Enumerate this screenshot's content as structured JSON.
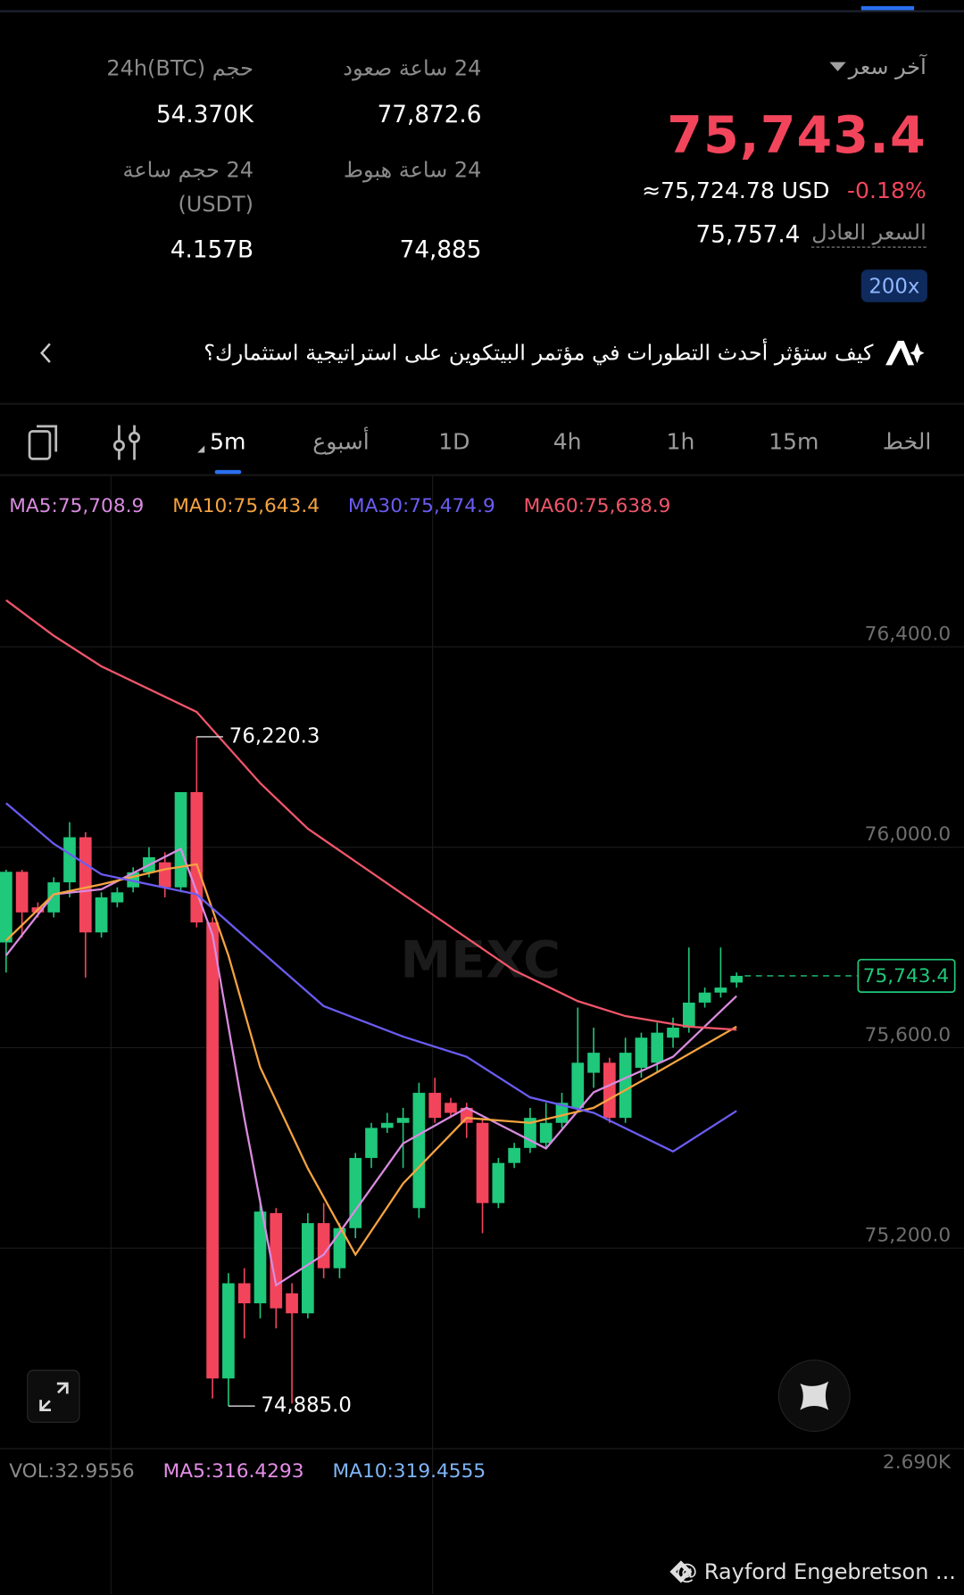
{
  "header": {
    "last_price_label": "آخر سعر",
    "last_price": "75,743.4",
    "usd_equiv": "≈75,724.78 USD",
    "change": "-0.18%",
    "fair_price_label": "السعر العادل",
    "fair_price": "75,757.4",
    "leverage": "200x",
    "stats": [
      {
        "label": "24 ساعة صعود",
        "value": "77,872.6"
      },
      {
        "label": "حجم 24h(BTC)",
        "value": "54.370K"
      },
      {
        "label": "24 ساعة هبوط",
        "value": "74,885"
      },
      {
        "label": "24 حجم ساعة (USDT)",
        "value": "4.157B"
      }
    ]
  },
  "banner": {
    "text": "كيف ستؤثر أحدث التطورات في مؤتمر البيتكوين على استراتيجية استثمارك؟"
  },
  "tabs": [
    "الخط",
    "15m",
    "1h",
    "4h",
    "1D",
    "أسبوع",
    "5m"
  ],
  "active_tab": 6,
  "chart_data": {
    "type": "candlestick",
    "watermark": "MEXC",
    "up_color": "#1fc87a",
    "down_color": "#f2455c",
    "ylim": [
      74800,
      76635
    ],
    "yticks": [
      {
        "value": 75200,
        "label": "75,200.0"
      },
      {
        "value": 75600,
        "label": "75,600.0"
      },
      {
        "value": 76000,
        "label": "76,000.0"
      },
      {
        "value": 76400,
        "label": "76,400.0"
      }
    ],
    "grid": true,
    "candles": {
      "open": [
        75810,
        75951,
        75880,
        75870,
        75930,
        76020,
        75830,
        75890,
        75920,
        75950,
        75970,
        75920,
        76110,
        75850,
        74940,
        75130,
        75090,
        75270,
        75110,
        75070,
        75250,
        75160,
        75240,
        75380,
        75440,
        75450,
        75280,
        75510,
        75490,
        75480,
        75450,
        75290,
        75370,
        75400,
        75410,
        75450,
        75480,
        75550,
        75570,
        75460,
        75560,
        75570,
        75620,
        75640,
        75690,
        75710,
        75730
      ],
      "high": [
        75955,
        75955,
        75890,
        75940,
        76050,
        76030,
        75910,
        75920,
        75960,
        76000,
        75990,
        76110,
        76220.3,
        75860,
        75150,
        75160,
        75300,
        75280,
        75130,
        75270,
        75290,
        75250,
        75390,
        75450,
        75470,
        75480,
        75530,
        75540,
        75500,
        75490,
        75460,
        75380,
        75410,
        75480,
        75490,
        75510,
        75680,
        75640,
        75580,
        75620,
        75630,
        75650,
        75660,
        75800,
        75720,
        75800,
        75750
      ],
      "low": [
        75750,
        75820,
        75860,
        75860,
        75900,
        75740,
        75820,
        75880,
        75910,
        75940,
        75900,
        75910,
        75840,
        74900,
        74885,
        75020,
        75060,
        75040,
        74890,
        75060,
        75140,
        75140,
        75220,
        75360,
        75430,
        75360,
        75260,
        75450,
        75460,
        75420,
        75230,
        75280,
        75360,
        75390,
        75400,
        75440,
        75470,
        75520,
        75450,
        75450,
        75540,
        75550,
        75600,
        75630,
        75680,
        75700,
        75720
      ],
      "close": [
        75951,
        75870,
        75870,
        75930,
        76020,
        75830,
        75900,
        75910,
        75950,
        75980,
        75920,
        76110,
        75850,
        74940,
        75130,
        75090,
        75273,
        75080,
        75070,
        75250,
        75160,
        75240,
        75380,
        75440,
        75450,
        75460,
        75510,
        75460,
        75470,
        75450,
        75290,
        75370,
        75400,
        75460,
        75450,
        75490,
        75570,
        75590,
        75460,
        75590,
        75620,
        75630,
        75640,
        75690,
        75710,
        75720,
        75743.4
      ]
    },
    "ma_lines": [
      {
        "label": "MA5:75,708.9",
        "color": "#d98be0",
        "x": [
          0,
          3,
          6,
          11,
          13,
          15,
          17,
          20,
          25,
          29,
          34,
          37,
          42,
          46
        ],
        "values": [
          75784,
          75906,
          75916,
          75997,
          75825,
          75460,
          75126,
          75187,
          75409,
          75480,
          75399,
          75511,
          75582,
          75703
        ]
      },
      {
        "label": "MA10:75,643.4",
        "color": "#f5a340",
        "x": [
          0,
          3,
          6,
          10,
          12,
          14,
          16,
          19,
          22,
          25,
          29,
          33,
          37,
          41,
          46
        ],
        "values": [
          75814,
          75906,
          75926,
          75956,
          75966,
          75784,
          75561,
          75359,
          75187,
          75329,
          75460,
          75450,
          75480,
          75551,
          75642
        ]
      },
      {
        "label": "MA30:75,474.9",
        "color": "#6b5cf2",
        "x": [
          0,
          3,
          6,
          9,
          12,
          16,
          20,
          25,
          29,
          33,
          37,
          42,
          46
        ],
        "values": [
          76088,
          76007,
          75946,
          75926,
          75906,
          75794,
          75683,
          75622,
          75582,
          75501,
          75470,
          75393,
          75474
        ]
      },
      {
        "label": "MA60:75,638.9",
        "color": "#f0566a",
        "x": [
          0,
          3,
          6,
          12,
          16,
          19,
          25,
          32,
          36,
          39,
          43,
          46
        ],
        "values": [
          76493,
          76422,
          76361,
          76270,
          76128,
          76037,
          75906,
          75754,
          75693,
          75663,
          75642,
          75636
        ]
      }
    ],
    "annotations": [
      {
        "index": 12,
        "value": 76220.3,
        "label": "76,220.3"
      },
      {
        "index": 14,
        "value": 74885,
        "label": "74,885.0"
      }
    ],
    "price_line": {
      "value": 75743.4,
      "label": "75,743.4"
    },
    "volume": {
      "labels": [
        "VOL:32.9556",
        "MA5:316.4293",
        "MA10:319.4555"
      ],
      "label_colors": [
        "#8b8b8b",
        "#e58ee8",
        "#7fb5f5"
      ],
      "axis_label": "2.690K"
    }
  },
  "footer": "@ Rayford Engebretson ..."
}
